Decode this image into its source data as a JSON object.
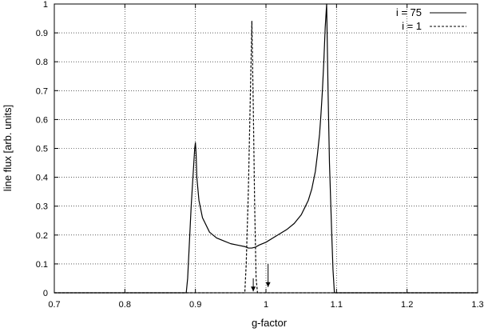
{
  "chart_data": {
    "type": "line",
    "xlabel": "g-factor",
    "ylabel": "line flux [arb. units]",
    "xlim": [
      0.7,
      1.3
    ],
    "ylim": [
      0,
      1
    ],
    "x_ticks": [
      "0.7",
      "0.8",
      "0.9",
      "1",
      "1.1",
      "1.2",
      "1.3"
    ],
    "y_ticks": [
      "0",
      "0.1",
      "0.2",
      "0.3",
      "0.4",
      "0.5",
      "0.6",
      "0.7",
      "0.8",
      "0.9",
      "1"
    ],
    "grid": true,
    "legend_position": "top-right",
    "series": [
      {
        "name": "i = 75",
        "style": "solid",
        "x": [
          0.7,
          0.887,
          0.889,
          0.891,
          0.894,
          0.897,
          0.899,
          0.9,
          0.901,
          0.902,
          0.905,
          0.91,
          0.92,
          0.93,
          0.94,
          0.95,
          0.96,
          0.97,
          0.975,
          0.98,
          0.985,
          0.99,
          1.0,
          1.01,
          1.02,
          1.03,
          1.04,
          1.05,
          1.06,
          1.065,
          1.07,
          1.073,
          1.076,
          1.078,
          1.08,
          1.082,
          1.084,
          1.086,
          1.088,
          1.09,
          1.093,
          1.095,
          1.097,
          1.3
        ],
        "y": [
          0,
          0,
          0.05,
          0.15,
          0.3,
          0.42,
          0.5,
          0.52,
          0.48,
          0.4,
          0.32,
          0.26,
          0.21,
          0.19,
          0.18,
          0.17,
          0.165,
          0.16,
          0.155,
          0.155,
          0.158,
          0.165,
          0.175,
          0.19,
          0.205,
          0.22,
          0.24,
          0.27,
          0.32,
          0.36,
          0.42,
          0.48,
          0.55,
          0.62,
          0.7,
          0.8,
          0.92,
          1.0,
          0.7,
          0.45,
          0.22,
          0.08,
          0,
          0
        ]
      },
      {
        "name": "i = 1",
        "style": "dashed",
        "x": [
          0.7,
          0.97,
          0.972,
          0.975,
          0.978,
          0.98,
          0.982,
          0.984,
          0.986,
          0.988,
          1.3
        ],
        "y": [
          0,
          0,
          0.1,
          0.35,
          0.7,
          0.94,
          0.65,
          0.3,
          0.05,
          0,
          0
        ]
      }
    ],
    "annotations": [
      {
        "type": "arrow",
        "x": 0.982,
        "y_from": 0.05,
        "y_to": 0.005
      },
      {
        "type": "arrow",
        "x": 1.003,
        "y_from": 0.1,
        "y_to": 0.02
      }
    ]
  }
}
